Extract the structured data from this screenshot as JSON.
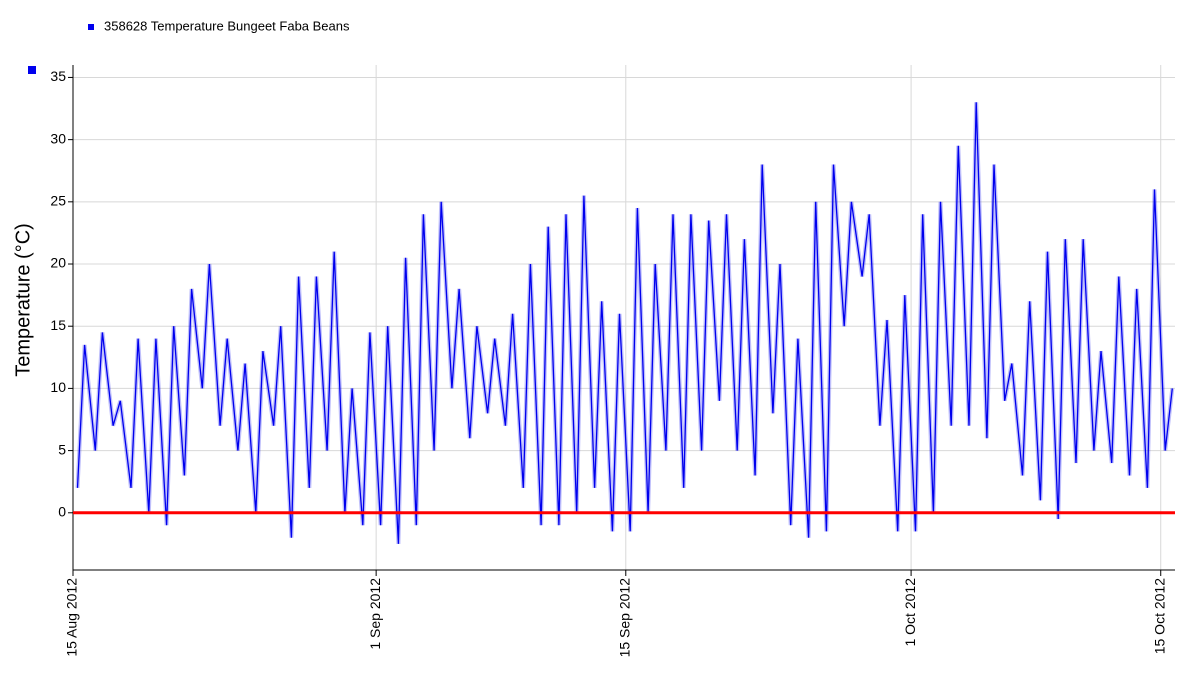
{
  "chart_data": {
    "type": "line",
    "ylabel": "Temperature (°C)",
    "series": [
      {
        "name": "358628  Temperature Bungeet Faba Beans",
        "color": "#0000ee",
        "values": [
          2,
          13.5,
          5,
          14.5,
          7,
          9,
          2,
          14,
          0,
          14,
          -1,
          15,
          3,
          18,
          10,
          20,
          7,
          14,
          5,
          12,
          0,
          13,
          7,
          15,
          -2,
          19,
          2,
          19,
          5,
          21,
          0,
          10,
          -1,
          14.5,
          -1,
          15,
          -2.5,
          20.5,
          -1,
          24,
          5,
          25,
          10,
          18,
          6,
          15,
          8,
          14,
          7,
          16,
          2,
          20,
          -1,
          23,
          -1,
          24,
          0,
          25.5,
          2,
          17,
          -1.5,
          16,
          -1.5,
          24.5,
          0,
          20,
          5,
          24,
          2,
          24,
          5,
          23.5,
          9,
          24,
          5,
          22,
          3,
          28,
          8,
          20,
          -1,
          14,
          -2,
          25,
          -1.5,
          28,
          15,
          25,
          19,
          24,
          7,
          15.5,
          -1.5,
          17.5,
          -1.5,
          24,
          0,
          25,
          7,
          29.5,
          7,
          33,
          6,
          28,
          9,
          12,
          3,
          17,
          1,
          21,
          -0.5,
          22,
          4,
          22,
          5,
          13,
          4,
          19,
          3,
          18,
          2,
          26,
          5,
          10
        ]
      }
    ],
    "x": [
      0.25,
      0.65,
      1.25,
      1.65,
      2.25,
      2.65,
      3.25,
      3.65,
      4.25,
      4.65,
      5.25,
      5.65,
      6.25,
      6.65,
      7.25,
      7.65,
      8.25,
      8.65,
      9.25,
      9.65,
      10.25,
      10.65,
      11.25,
      11.65,
      12.25,
      12.65,
      13.25,
      13.65,
      14.25,
      14.65,
      15.25,
      15.65,
      16.25,
      16.65,
      17.25,
      17.65,
      18.25,
      18.65,
      19.25,
      19.65,
      20.25,
      20.65,
      21.25,
      21.65,
      22.25,
      22.65,
      23.25,
      23.65,
      24.25,
      24.65,
      25.25,
      25.65,
      26.25,
      26.65,
      27.25,
      27.65,
      28.25,
      28.65,
      29.25,
      29.65,
      30.25,
      30.65,
      31.25,
      31.65,
      32.25,
      32.65,
      33.25,
      33.65,
      34.25,
      34.65,
      35.25,
      35.65,
      36.25,
      36.65,
      37.25,
      37.65,
      38.25,
      38.65,
      39.25,
      39.65,
      40.25,
      40.65,
      41.25,
      41.65,
      42.25,
      42.65,
      43.25,
      43.65,
      44.25,
      44.65,
      45.25,
      45.65,
      46.25,
      46.65,
      47.25,
      47.65,
      48.25,
      48.65,
      49.25,
      49.65,
      50.25,
      50.65,
      51.25,
      51.65,
      52.25,
      52.65,
      53.25,
      53.65,
      54.25,
      54.65,
      55.25,
      55.65,
      56.25,
      56.65,
      57.25,
      57.65,
      58.25,
      58.65,
      59.25,
      59.65,
      60.25,
      60.65,
      61.25,
      61.65
    ],
    "xlim": [
      0,
      61.8
    ],
    "xticks": [
      {
        "value": 0,
        "label": "15 Aug 2012"
      },
      {
        "value": 17,
        "label": "1 Sep 2012"
      },
      {
        "value": 31,
        "label": "15 Sep 2012"
      },
      {
        "value": 47,
        "label": "1 Oct 2012"
      },
      {
        "value": 61,
        "label": "15 Oct 2012"
      }
    ],
    "ylim": [
      -4.6,
      36
    ],
    "yticks": [
      0,
      5,
      10,
      15,
      20,
      25,
      30,
      35
    ],
    "threshold": {
      "value": 0,
      "color": "#ff0000"
    },
    "grid": true
  }
}
